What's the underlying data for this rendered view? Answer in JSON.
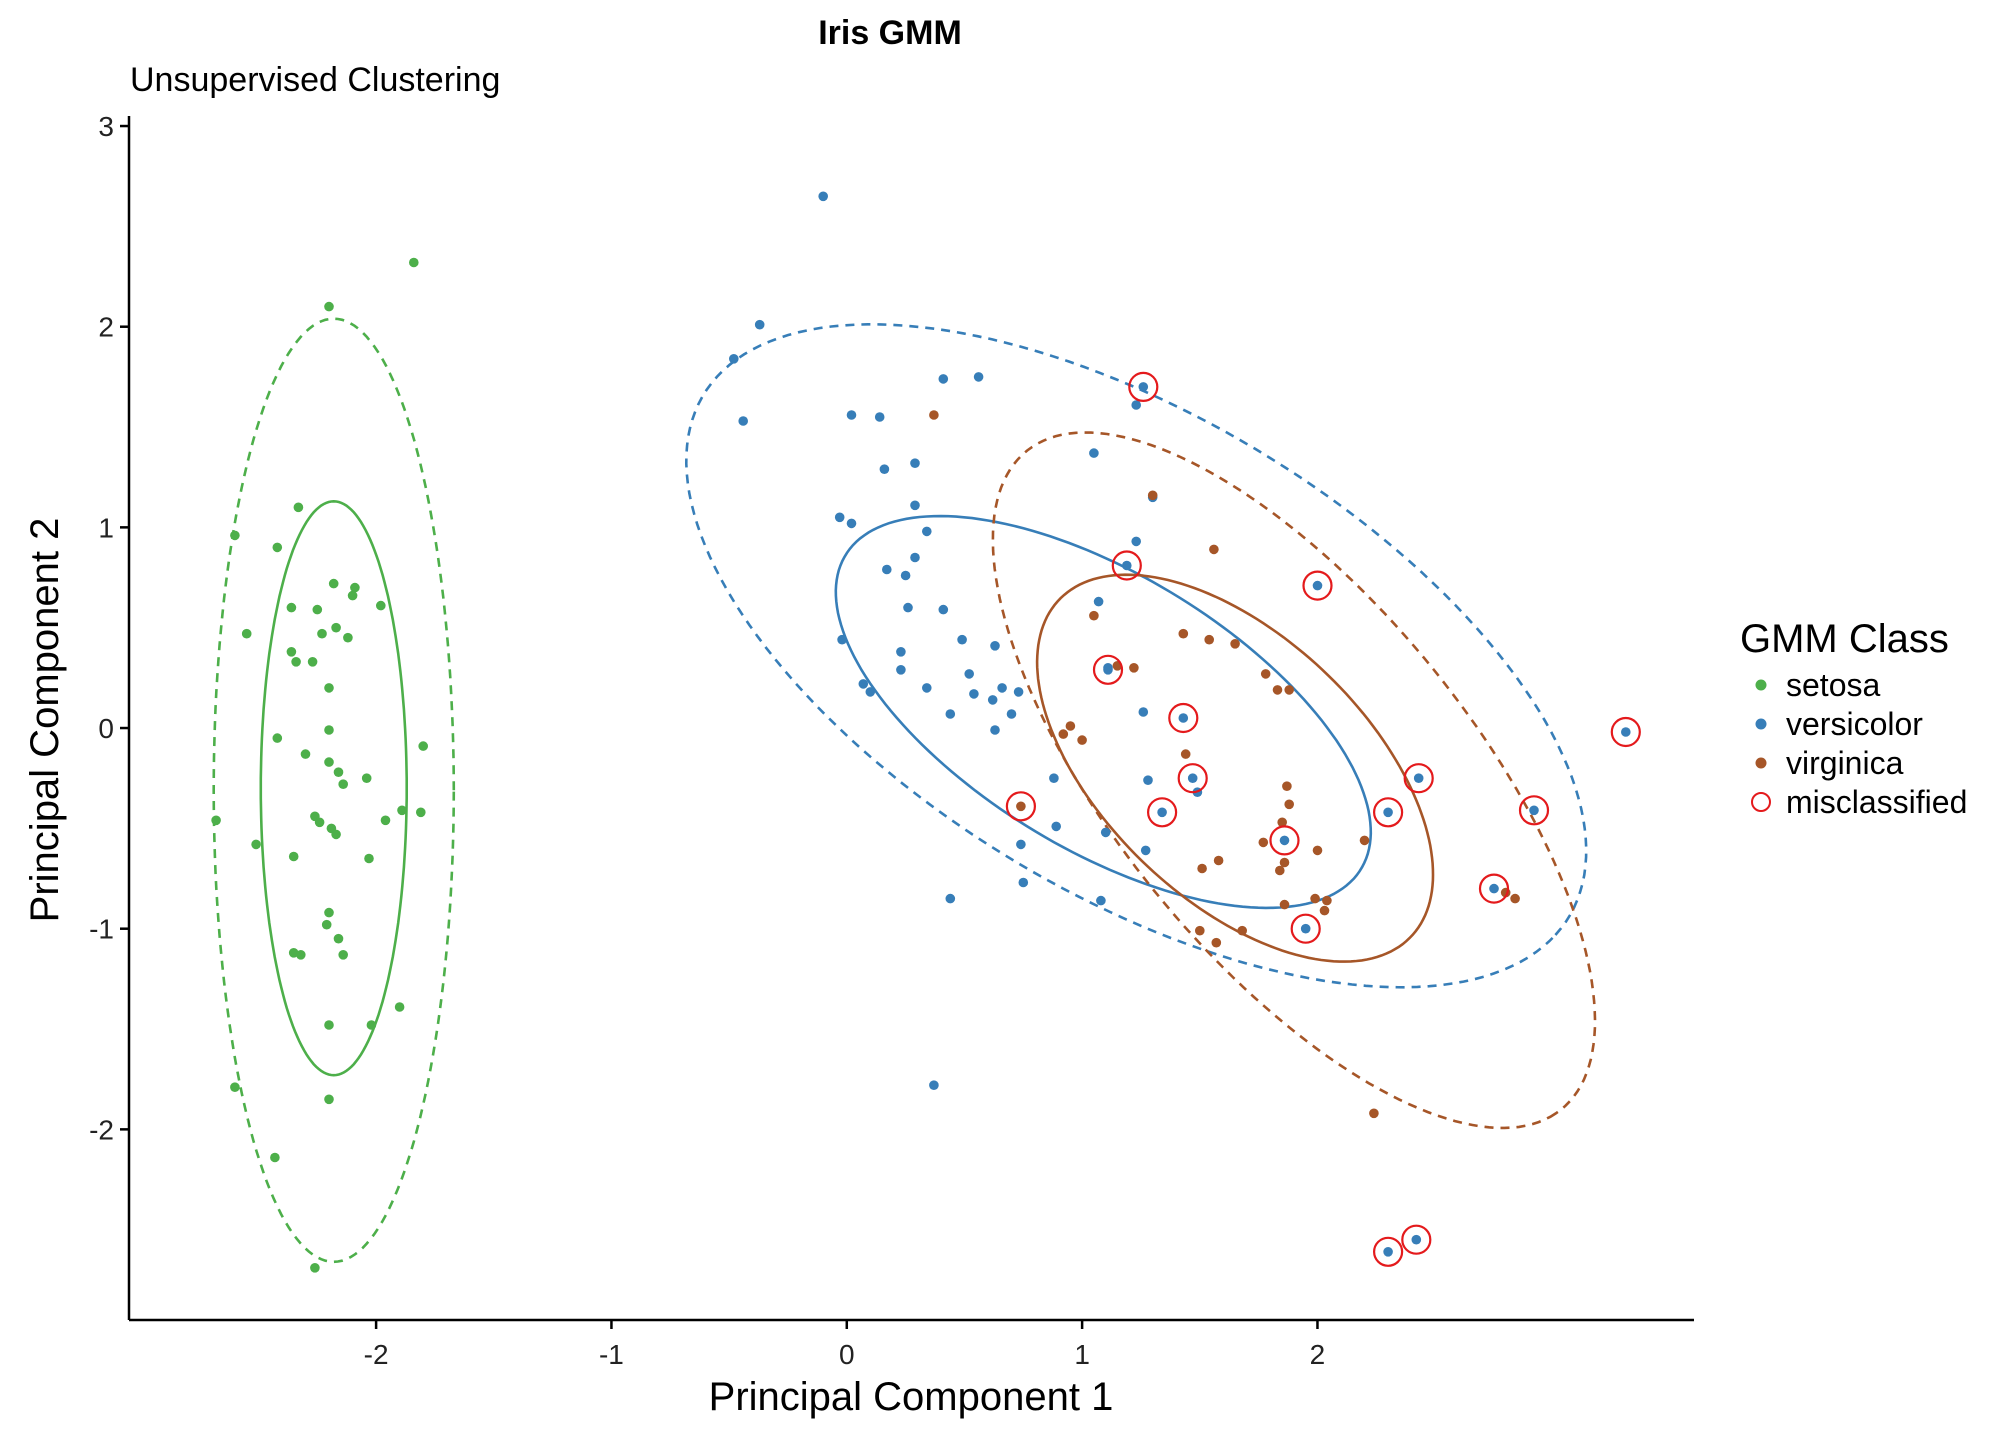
{
  "chart_data": {
    "type": "scatter",
    "title": "Iris GMM",
    "subtitle": "Unsupervised Clustering",
    "xlabel": "Principal Component 1",
    "ylabel": "Principal Component 2",
    "xlim": [
      -3.05,
      3.6
    ],
    "ylim": [
      -2.95,
      3.05
    ],
    "xticks": [
      -2,
      -1,
      0,
      1,
      2
    ],
    "yticks": [
      -2,
      -1,
      0,
      1,
      2,
      3
    ],
    "grid": false,
    "legend": {
      "title": "GMM Class",
      "placement": "right",
      "items": [
        {
          "label": "setosa",
          "color": "#4DAF4A",
          "shape": "dot"
        },
        {
          "label": "versicolor",
          "color": "#377EB8",
          "shape": "dot"
        },
        {
          "label": "virginica",
          "color": "#A65628",
          "shape": "dot"
        },
        {
          "label": "misclassified",
          "color": "#E41A1C",
          "shape": "open-circle"
        }
      ]
    },
    "series": [
      {
        "name": "setosa",
        "color": "#4DAF4A",
        "points": [
          [
            -2.68,
            -0.46
          ],
          [
            -2.2,
            2.1
          ],
          [
            -2.6,
            0.96
          ],
          [
            -2.1,
            0.66
          ],
          [
            -2.42,
            0.9
          ],
          [
            -2.55,
            0.47
          ],
          [
            -2.33,
            1.1
          ],
          [
            -2.18,
            0.72
          ],
          [
            -2.36,
            0.6
          ],
          [
            -2.09,
            0.7
          ],
          [
            -2.25,
            0.59
          ],
          [
            -1.98,
            0.61
          ],
          [
            -2.17,
            0.5
          ],
          [
            -2.23,
            0.47
          ],
          [
            -2.12,
            0.45
          ],
          [
            -2.36,
            0.38
          ],
          [
            -2.34,
            0.33
          ],
          [
            -2.27,
            0.33
          ],
          [
            -2.2,
            0.2
          ],
          [
            -1.84,
            2.32
          ],
          [
            -1.8,
            -0.09
          ],
          [
            -2.42,
            -0.05
          ],
          [
            -2.2,
            -0.01
          ],
          [
            -2.3,
            -0.13
          ],
          [
            -2.2,
            -0.17
          ],
          [
            -2.16,
            -0.22
          ],
          [
            -2.14,
            -0.28
          ],
          [
            -2.04,
            -0.25
          ],
          [
            -2.51,
            -0.58
          ],
          [
            -2.35,
            -0.64
          ],
          [
            -2.26,
            -0.44
          ],
          [
            -2.24,
            -0.47
          ],
          [
            -2.19,
            -0.5
          ],
          [
            -2.17,
            -0.53
          ],
          [
            -2.03,
            -0.65
          ],
          [
            -1.96,
            -0.46
          ],
          [
            -1.89,
            -0.41
          ],
          [
            -1.81,
            -0.42
          ],
          [
            -2.2,
            -0.92
          ],
          [
            -2.21,
            -0.98
          ],
          [
            -2.16,
            -1.05
          ],
          [
            -2.35,
            -1.12
          ],
          [
            -2.32,
            -1.13
          ],
          [
            -2.14,
            -1.13
          ],
          [
            -2.2,
            -1.48
          ],
          [
            -2.02,
            -1.48
          ],
          [
            -1.9,
            -1.39
          ],
          [
            -2.6,
            -1.79
          ],
          [
            -2.2,
            -1.85
          ],
          [
            -2.43,
            -2.14
          ],
          [
            -2.26,
            -2.69
          ]
        ]
      },
      {
        "name": "versicolor",
        "color": "#377EB8",
        "points": [
          [
            -0.1,
            2.65
          ],
          [
            -0.37,
            2.01
          ],
          [
            -0.48,
            1.84
          ],
          [
            -0.44,
            1.53
          ],
          [
            0.41,
            1.74
          ],
          [
            0.56,
            1.75
          ],
          [
            0.02,
            1.56
          ],
          [
            0.14,
            1.55
          ],
          [
            1.23,
            1.61
          ],
          [
            1.05,
            1.37
          ],
          [
            0.16,
            1.29
          ],
          [
            0.29,
            1.32
          ],
          [
            1.3,
            1.15
          ],
          [
            -0.03,
            1.05
          ],
          [
            0.02,
            1.02
          ],
          [
            0.29,
            1.11
          ],
          [
            0.34,
            0.98
          ],
          [
            1.23,
            0.93
          ],
          [
            0.29,
            0.85
          ],
          [
            0.17,
            0.79
          ],
          [
            0.25,
            0.76
          ],
          [
            1.07,
            0.63
          ],
          [
            0.26,
            0.6
          ],
          [
            0.41,
            0.59
          ],
          [
            0.49,
            0.44
          ],
          [
            -0.02,
            0.44
          ],
          [
            0.63,
            0.41
          ],
          [
            0.23,
            0.38
          ],
          [
            0.23,
            0.29
          ],
          [
            0.52,
            0.27
          ],
          [
            1.11,
            0.3
          ],
          [
            0.07,
            0.22
          ],
          [
            0.1,
            0.18
          ],
          [
            0.34,
            0.2
          ],
          [
            0.66,
            0.2
          ],
          [
            0.73,
            0.18
          ],
          [
            0.54,
            0.17
          ],
          [
            0.62,
            0.14
          ],
          [
            0.44,
            0.07
          ],
          [
            0.7,
            0.07
          ],
          [
            1.26,
            0.08
          ],
          [
            0.63,
            -0.01
          ],
          [
            0.88,
            -0.25
          ],
          [
            1.28,
            -0.26
          ],
          [
            1.49,
            -0.32
          ],
          [
            0.89,
            -0.49
          ],
          [
            1.1,
            -0.52
          ],
          [
            1.27,
            -0.61
          ],
          [
            0.74,
            -0.58
          ],
          [
            0.75,
            -0.77
          ],
          [
            1.08,
            -0.86
          ],
          [
            0.44,
            -0.85
          ],
          [
            0.37,
            -1.78
          ]
        ]
      },
      {
        "name": "virginica",
        "color": "#A65628",
        "points": [
          [
            0.37,
            1.56
          ],
          [
            1.3,
            1.16
          ],
          [
            1.56,
            0.89
          ],
          [
            1.05,
            0.56
          ],
          [
            1.15,
            0.31
          ],
          [
            1.22,
            0.3
          ],
          [
            1.43,
            0.47
          ],
          [
            1.54,
            0.44
          ],
          [
            1.65,
            0.42
          ],
          [
            1.78,
            0.27
          ],
          [
            1.83,
            0.19
          ],
          [
            1.88,
            0.19
          ],
          [
            0.95,
            0.01
          ],
          [
            0.92,
            -0.03
          ],
          [
            1.0,
            -0.06
          ],
          [
            1.44,
            -0.13
          ],
          [
            1.87,
            -0.29
          ],
          [
            1.88,
            -0.38
          ],
          [
            1.85,
            -0.47
          ],
          [
            1.77,
            -0.57
          ],
          [
            1.86,
            -0.67
          ],
          [
            1.58,
            -0.66
          ],
          [
            1.51,
            -0.7
          ],
          [
            1.84,
            -0.71
          ],
          [
            2.0,
            -0.61
          ],
          [
            2.2,
            -0.56
          ],
          [
            1.86,
            -0.88
          ],
          [
            1.99,
            -0.85
          ],
          [
            2.03,
            -0.91
          ],
          [
            2.04,
            -0.86
          ],
          [
            1.5,
            -1.01
          ],
          [
            1.68,
            -1.01
          ],
          [
            1.57,
            -1.07
          ],
          [
            2.84,
            -0.85
          ],
          [
            2.8,
            -0.82
          ],
          [
            2.24,
            -1.92
          ]
        ]
      }
    ],
    "misclassified": [
      {
        "x": 1.26,
        "y": 1.7,
        "color": "#377EB8"
      },
      {
        "x": 1.19,
        "y": 0.81,
        "color": "#377EB8"
      },
      {
        "x": 2.0,
        "y": 0.71,
        "color": "#377EB8"
      },
      {
        "x": 1.11,
        "y": 0.29,
        "color": "#377EB8"
      },
      {
        "x": 1.43,
        "y": 0.05,
        "color": "#377EB8"
      },
      {
        "x": 3.31,
        "y": -0.02,
        "color": "#377EB8"
      },
      {
        "x": 1.47,
        "y": -0.25,
        "color": "#377EB8"
      },
      {
        "x": 2.43,
        "y": -0.25,
        "color": "#377EB8"
      },
      {
        "x": 1.34,
        "y": -0.42,
        "color": "#377EB8"
      },
      {
        "x": 2.3,
        "y": -0.42,
        "color": "#377EB8"
      },
      {
        "x": 2.92,
        "y": -0.41,
        "color": "#377EB8"
      },
      {
        "x": 0.74,
        "y": -0.39,
        "color": "#A65628"
      },
      {
        "x": 1.86,
        "y": -0.56,
        "color": "#377EB8"
      },
      {
        "x": 2.75,
        "y": -0.8,
        "color": "#377EB8"
      },
      {
        "x": 1.95,
        "y": -1.0,
        "color": "#377EB8"
      },
      {
        "x": 2.3,
        "y": -2.61,
        "color": "#377EB8"
      },
      {
        "x": 2.42,
        "y": -2.55,
        "color": "#377EB8"
      }
    ],
    "ellipses": [
      {
        "class": "setosa",
        "color": "#4DAF4A",
        "style": "solid",
        "cx": -2.18,
        "cy": -0.3,
        "rx": 0.31,
        "ry": 1.43,
        "angle": 0
      },
      {
        "class": "setosa",
        "color": "#4DAF4A",
        "style": "dashed",
        "cx": -2.18,
        "cy": -0.31,
        "rx": 0.51,
        "ry": 2.35,
        "angle": 0
      },
      {
        "class": "versicolor",
        "color": "#377EB8",
        "style": "solid",
        "cx": 1.09,
        "cy": 0.08,
        "rx": 1.35,
        "ry": 0.65,
        "angle": -38
      },
      {
        "class": "versicolor",
        "color": "#377EB8",
        "style": "dashed",
        "cx": 1.23,
        "cy": 0.36,
        "rx": 2.26,
        "ry": 1.13,
        "angle": -38
      },
      {
        "class": "virginica",
        "color": "#A65628",
        "style": "solid",
        "cx": 1.65,
        "cy": -0.2,
        "rx": 1.13,
        "ry": 0.6,
        "angle": -52
      },
      {
        "class": "virginica",
        "color": "#A65628",
        "style": "dashed",
        "cx": 1.9,
        "cy": -0.26,
        "rx": 2.0,
        "ry": 0.8,
        "angle": -57
      }
    ]
  }
}
